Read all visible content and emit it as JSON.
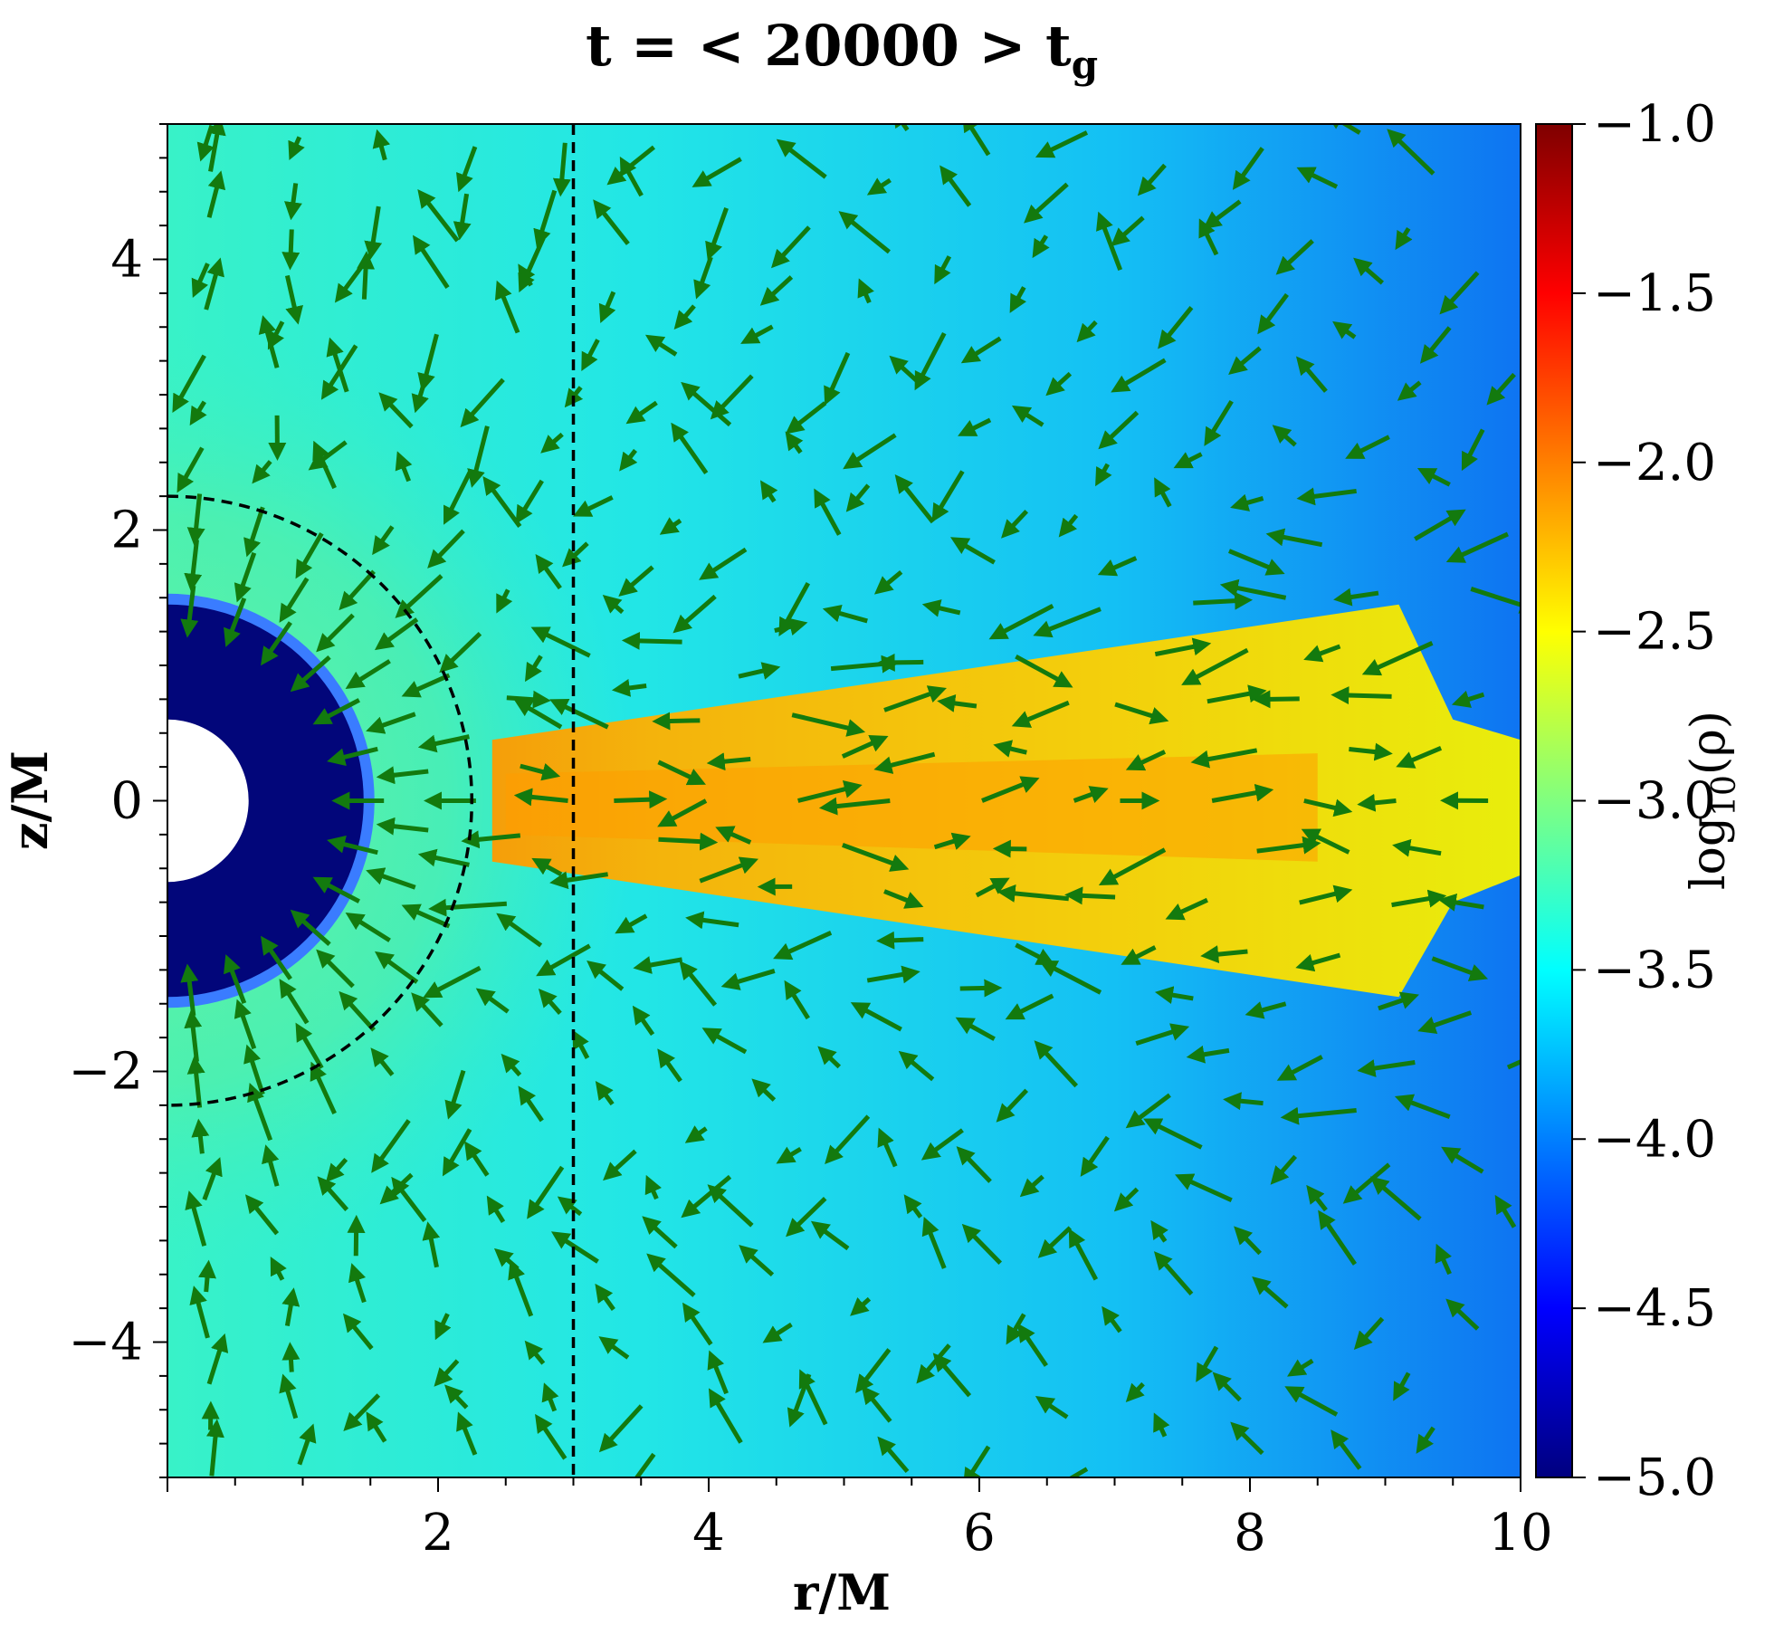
{
  "chart_data": {
    "type": "heatmap",
    "title_main": "t = < 20000 >  t",
    "title_sub": "g",
    "xlabel": "r/M",
    "ylabel": "z/M",
    "xlim": [
      0,
      10
    ],
    "ylim": [
      -5,
      5
    ],
    "xticks": [
      2,
      4,
      6,
      8,
      10
    ],
    "yticks": [
      -4,
      -2,
      0,
      2,
      4
    ],
    "colorbar": {
      "label_main": "log",
      "label_sub": "10",
      "label_tail": "(ρ)",
      "range": [
        -5.0,
        -1.0
      ],
      "ticks": [
        -1.0,
        -1.5,
        -2.0,
        -2.5,
        -3.0,
        -3.5,
        -4.0,
        -4.5,
        -5.0
      ],
      "tick_labels": [
        "−1.0",
        "−1.5",
        "−2.0",
        "−2.5",
        "−3.0",
        "−3.5",
        "−4.0",
        "−4.5",
        "−5.0"
      ],
      "colormap": "jet"
    },
    "overlays": {
      "vertical_dashed_line_r": 3.0,
      "dashed_circle_radius": 2.25,
      "horizon_inner_radius": 0.6,
      "horizon_outer_radius": 1.45,
      "arrow_color": "#137a0e"
    }
  }
}
